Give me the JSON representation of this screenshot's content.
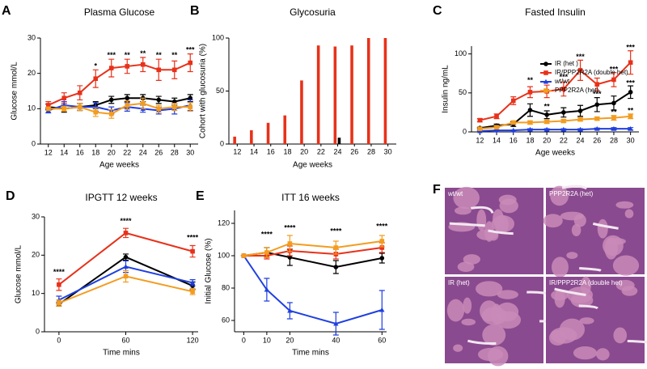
{
  "chart_data": [
    {
      "type": "line",
      "panel": "A",
      "title": "Plasma Glucose",
      "xlabel": "Age weeks",
      "ylabel": "Glucose mmol/L",
      "x": [
        12,
        14,
        16,
        18,
        20,
        22,
        24,
        26,
        28,
        30
      ],
      "xlim": [
        11,
        31
      ],
      "xticks": [
        12,
        14,
        16,
        18,
        20,
        22,
        24,
        26,
        28,
        30
      ],
      "ylim": [
        0,
        30
      ],
      "yticks": [
        0,
        10,
        20,
        30
      ],
      "series": [
        {
          "color": "#000000",
          "marker": "circle",
          "values": [
            10.5,
            10,
            10.5,
            11,
            12.5,
            13,
            13,
            12.5,
            12,
            13
          ],
          "errors": [
            0.8,
            1,
            1,
            1,
            1,
            1,
            1,
            1,
            1,
            1
          ]
        },
        {
          "color": "#e8311a",
          "marker": "square",
          "values": [
            11,
            13,
            14.5,
            18.5,
            21.5,
            22,
            22.5,
            21,
            21,
            23
          ],
          "errors": [
            1,
            1.5,
            2,
            2.5,
            2.5,
            2,
            2,
            3,
            2.5,
            2.5
          ]
        },
        {
          "color": "#1f3fe0",
          "marker": "triangle",
          "values": [
            9.5,
            11,
            10.5,
            10.5,
            9.5,
            10.5,
            10,
            9.5,
            10,
            11
          ],
          "errors": [
            0.7,
            1,
            1,
            1.2,
            1,
            1.2,
            1,
            1,
            1.5,
            1.5
          ]
        },
        {
          "color": "#f39c1f",
          "marker": "square",
          "values": [
            10,
            10,
            10.5,
            9,
            8.5,
            11,
            11.5,
            10,
            10.5,
            10.5
          ],
          "errors": [
            0.5,
            0.7,
            1,
            1.2,
            1.2,
            1.2,
            1.5,
            1,
            1,
            1.2
          ]
        }
      ],
      "annotations": [
        {
          "x": 18,
          "y": 22,
          "text": "*"
        },
        {
          "x": 20,
          "y": 25,
          "text": "***"
        },
        {
          "x": 22,
          "y": 25,
          "text": "**"
        },
        {
          "x": 24,
          "y": 25.5,
          "text": "**"
        },
        {
          "x": 26,
          "y": 25,
          "text": "**"
        },
        {
          "x": 28,
          "y": 25,
          "text": "**"
        },
        {
          "x": 30,
          "y": 26.5,
          "text": "***"
        }
      ]
    },
    {
      "type": "bar",
      "panel": "B",
      "title": "Glycosuria",
      "xlabel": "Age weeks",
      "ylabel": "Cohort with glucosuria (%)",
      "categories": [
        12,
        14,
        16,
        18,
        20,
        22,
        24,
        26,
        28,
        30
      ],
      "ylim": [
        0,
        100
      ],
      "yticks": [
        0,
        50,
        100
      ],
      "series": [
        {
          "color": "#e8311a",
          "values": [
            7,
            13,
            20,
            27,
            60,
            93,
            92,
            93,
            100,
            100
          ]
        },
        {
          "color": "#000000",
          "values": [
            0,
            0,
            0,
            0,
            0,
            0,
            6,
            0,
            0,
            0
          ]
        }
      ]
    },
    {
      "type": "line",
      "panel": "C",
      "title": "Fasted Insulin",
      "xlabel": "Age weeks",
      "ylabel": "Insulin ng/mL",
      "x": [
        12,
        14,
        16,
        18,
        20,
        22,
        24,
        26,
        28,
        30
      ],
      "xlim": [
        11,
        31
      ],
      "xticks": [
        12,
        14,
        16,
        18,
        20,
        22,
        24,
        26,
        28,
        30
      ],
      "ylim": [
        0,
        110
      ],
      "yticks": [
        0,
        50,
        100
      ],
      "legend": "upper right",
      "series": [
        {
          "name": "IR (het )",
          "color": "#000000",
          "marker": "circle",
          "values": [
            5,
            8,
            10,
            28,
            22,
            25,
            27,
            35,
            37,
            51
          ],
          "errors": [
            1,
            2,
            3,
            8,
            5,
            6,
            7,
            9,
            9,
            8
          ]
        },
        {
          "name": "IR/PPP2R2A (double het)",
          "color": "#e8311a",
          "marker": "square",
          "values": [
            15,
            20,
            40,
            51,
            52,
            55,
            79,
            61,
            67,
            89
          ],
          "errors": [
            2,
            3,
            5,
            7,
            8,
            9,
            13,
            8,
            9,
            15
          ]
        },
        {
          "name": "wt/wt",
          "color": "#1f3fe0",
          "marker": "triangle",
          "values": [
            1,
            2,
            2,
            3,
            3,
            3,
            3,
            4,
            4,
            4
          ],
          "errors": [
            0.5,
            0.5,
            0.5,
            1,
            1,
            1,
            1,
            1,
            1.5,
            1.5
          ]
        },
        {
          "name": "PPP2R2A (het)",
          "color": "#f39c1f",
          "marker": "square",
          "values": [
            4,
            6,
            12,
            12,
            13,
            14,
            16,
            17,
            18,
            20
          ],
          "errors": [
            1,
            1,
            2,
            2,
            2,
            2,
            2,
            2,
            3,
            3
          ]
        }
      ],
      "annotations": [
        {
          "x": 18,
          "y": 66,
          "text": "**"
        },
        {
          "x": 20,
          "y": 32,
          "text": "**"
        },
        {
          "x": 22,
          "y": 70,
          "text": "***"
        },
        {
          "x": 24,
          "y": 96,
          "text": "***"
        },
        {
          "x": 26,
          "y": 48,
          "text": "***"
        },
        {
          "x": 28,
          "y": 80,
          "text": "***"
        },
        {
          "x": 30,
          "y": 108,
          "text": "***"
        },
        {
          "x": 30,
          "y": 62,
          "text": "***"
        },
        {
          "x": 28,
          "y": 25,
          "text": "**"
        },
        {
          "x": 30,
          "y": 27,
          "text": "**"
        }
      ]
    },
    {
      "type": "line",
      "panel": "D",
      "title": "IPGTT 12 weeks",
      "xlabel": "Time mins",
      "ylabel": "Glucose mmol/L",
      "x": [
        0,
        60,
        120
      ],
      "xlim": [
        -13,
        125
      ],
      "xticks": [
        0,
        60,
        120
      ],
      "ylim": [
        0,
        30
      ],
      "yticks": [
        0,
        10,
        20,
        30
      ],
      "series": [
        {
          "color": "#000000",
          "marker": "circle",
          "values": [
            7.2,
            19.5,
            12
          ],
          "errors": [
            0.5,
            0.8,
            1
          ]
        },
        {
          "color": "#e8311a",
          "marker": "square",
          "values": [
            12.3,
            25.8,
            21
          ],
          "errors": [
            1.5,
            1.2,
            1.5
          ]
        },
        {
          "color": "#1f3fe0",
          "marker": "triangle",
          "values": [
            8.3,
            17,
            12.8
          ],
          "errors": [
            1,
            1.5,
            0.8
          ]
        },
        {
          "color": "#f39c1f",
          "marker": "square",
          "values": [
            7.5,
            14.5,
            10.5
          ],
          "errors": [
            0.8,
            1.5,
            0.8
          ]
        }
      ],
      "annotations": [
        {
          "x": 0,
          "y": 15.5,
          "text": "****"
        },
        {
          "x": 60,
          "y": 28.8,
          "text": "****"
        },
        {
          "x": 120,
          "y": 24.5,
          "text": "****"
        }
      ]
    },
    {
      "type": "line",
      "panel": "E",
      "title": "ITT 16 weeks",
      "xlabel": "Time mins",
      "ylabel": "Initial Glucose (%)",
      "x": [
        0,
        10,
        20,
        40,
        60
      ],
      "xlim": [
        -4,
        62
      ],
      "xticks": [
        0,
        10,
        20,
        40,
        60
      ],
      "ylim": [
        53,
        128
      ],
      "yticks": [
        60,
        80,
        100,
        120
      ],
      "series": [
        {
          "color": "#000000",
          "marker": "circle",
          "values": [
            100,
            102,
            99,
            93,
            98.5
          ],
          "errors": [
            0,
            3,
            5,
            4,
            3
          ]
        },
        {
          "color": "#e8311a",
          "marker": "square",
          "values": [
            100,
            100,
            103,
            101,
            105
          ],
          "errors": [
            0,
            2,
            3,
            3,
            3
          ]
        },
        {
          "color": "#1f3fe0",
          "marker": "triangle",
          "values": [
            100,
            79,
            66,
            58,
            66.5
          ],
          "errors": [
            0,
            7,
            5,
            7,
            12
          ]
        },
        {
          "color": "#f39c1f",
          "marker": "square",
          "values": [
            100,
            102,
            107.5,
            105,
            109
          ],
          "errors": [
            0,
            3,
            5,
            4,
            3.5
          ]
        }
      ],
      "annotations": [
        {
          "x": 10,
          "y": 113,
          "text": "****"
        },
        {
          "x": 20,
          "y": 117,
          "text": "****"
        },
        {
          "x": 40,
          "y": 115,
          "text": "****"
        },
        {
          "x": 60,
          "y": 118,
          "text": "****"
        }
      ]
    }
  ],
  "histology": {
    "panel": "F",
    "images": [
      "wt/wt",
      "PPP2R2A (het)",
      "IR (het)",
      "IR/PPP2R2A (double het)"
    ]
  }
}
